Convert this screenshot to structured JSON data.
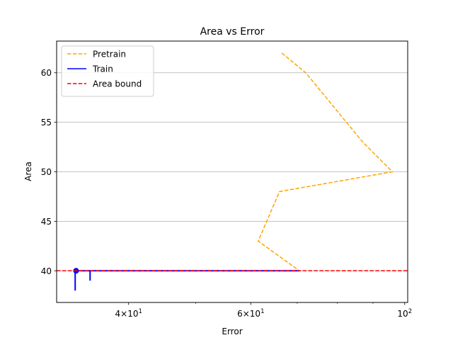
{
  "chart_data": {
    "type": "line",
    "title": "Area vs Error",
    "xlabel": "Error",
    "ylabel": "Area",
    "x_scale": "log",
    "xlim": [
      31.5,
      101
    ],
    "ylim": [
      36.8,
      63.2
    ],
    "x_major_ticks": [
      {
        "value": 40,
        "base": "4",
        "exp": "1"
      },
      {
        "value": 60,
        "base": "6",
        "exp": "1"
      },
      {
        "value": 100,
        "base": "10",
        "exp": "2"
      }
    ],
    "x_minor_ticks": [
      50,
      70,
      80,
      90
    ],
    "y_ticks": [
      40,
      45,
      50,
      55,
      60
    ],
    "y_grid": true,
    "legend_position": "upper-left",
    "series": [
      {
        "name": "Pretrain",
        "style": "dashed",
        "color": "#ffa500",
        "x": [
          66.5,
          72.0,
          87.0,
          96.0,
          66.0,
          61.5,
          70.5
        ],
        "y": [
          62.0,
          60.0,
          53.0,
          50.0,
          48.0,
          43.0,
          40.0
        ]
      },
      {
        "name": "Train",
        "style": "solid",
        "color": "#0000ff",
        "segments": [
          {
            "x": [
              33.5,
              70.5
            ],
            "y": [
              40.0,
              40.0
            ]
          },
          {
            "x": [
              33.5,
              33.5
            ],
            "y": [
              40.0,
              38.0
            ]
          },
          {
            "x": [
              35.2,
              35.2
            ],
            "y": [
              40.0,
              39.0
            ]
          }
        ],
        "marker": {
          "x": 33.6,
          "y": 40.0
        }
      }
    ],
    "reference_lines": [
      {
        "name": "Area bound",
        "orientation": "horizontal",
        "y": 40,
        "style": "dashed",
        "color": "#ff0000"
      }
    ]
  }
}
